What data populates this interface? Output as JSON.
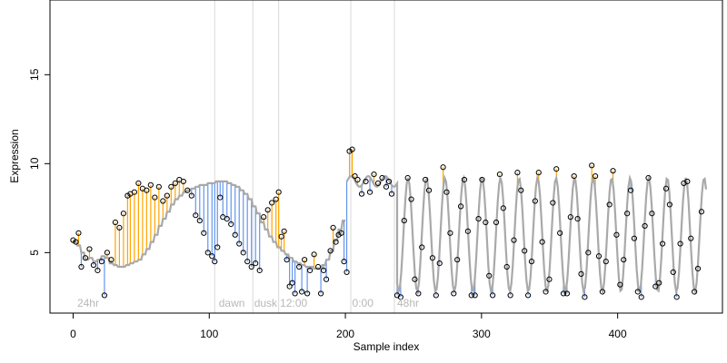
{
  "chart_data": {
    "type": "scatter",
    "title": "",
    "xlabel": "Sample index",
    "ylabel": "Expression",
    "xlim": [
      -17,
      477
    ],
    "ylim": [
      1.6,
      19.2
    ],
    "x_ticks": [
      0,
      100,
      200,
      300,
      400
    ],
    "y_ticks": [
      5,
      10,
      15
    ],
    "grid": false,
    "legend": "none",
    "colors": {
      "fit_line": "#a9a9a9",
      "positive_residual": "#ffa500",
      "negative_residual": "#6495ed",
      "points_edge": "#000000",
      "vlines": "#d9d9d9",
      "annotation_text": "#b8b8b8"
    },
    "vlines": [
      104,
      132,
      151,
      204,
      236
    ],
    "annotations": [
      {
        "label": "24hr",
        "x": 3
      },
      {
        "label": "dawn",
        "x": 107
      },
      {
        "label": "dusk",
        "x": 133
      },
      {
        "label": "12:00",
        "x": 152
      },
      {
        "label": "0:00",
        "x": 205
      },
      {
        "label": "48hr",
        "x": 238
      }
    ],
    "series": [
      {
        "values": [
          5.6,
          5.4,
          5.0,
          4.6,
          4.7,
          4.5,
          4.6,
          4.8,
          4.7,
          4.4,
          4.3,
          4.2,
          4.2,
          4.3,
          4.4,
          4.5,
          4.6,
          4.9,
          5.2,
          5.6,
          6.0,
          6.5,
          6.9,
          7.3,
          7.7,
          8.0,
          8.2,
          8.4,
          8.5,
          8.6,
          8.7,
          8.8,
          8.8,
          8.9,
          8.9,
          9.0,
          9.0,
          9.0,
          8.9,
          8.8,
          8.7,
          8.5,
          8.3,
          8.0,
          7.6,
          7.2,
          6.7,
          6.3,
          5.9,
          5.6,
          5.3,
          5.1,
          4.9,
          4.7,
          4.5,
          4.4,
          4.3,
          4.2,
          4.2,
          4.1,
          4.1,
          4.3,
          4.6,
          5.1,
          5.7,
          6.3,
          6.8,
          7.2,
          7.5,
          7.7,
          7.9,
          8.0,
          8.1,
          8.2,
          8.3,
          8.3,
          8.3,
          8.4,
          8.4,
          8.5
        ],
        "points": [
          [
            0,
            5.7
          ],
          [
            2,
            5.6
          ],
          [
            4,
            6.1
          ],
          [
            6,
            4.2
          ],
          [
            9,
            4.7
          ],
          [
            12,
            5.2
          ],
          [
            15,
            4.3
          ],
          [
            18,
            4.0
          ],
          [
            21,
            4.5
          ],
          [
            23,
            2.6
          ],
          [
            25,
            5.0
          ],
          [
            28,
            4.6
          ],
          [
            31,
            6.7
          ],
          [
            34,
            6.4
          ],
          [
            37,
            7.2
          ],
          [
            40,
            8.2
          ],
          [
            42,
            8.3
          ],
          [
            45,
            8.4
          ],
          [
            48,
            8.9
          ],
          [
            51,
            8.6
          ],
          [
            54,
            8.5
          ],
          [
            57,
            8.8
          ],
          [
            60,
            8.1
          ],
          [
            63,
            8.7
          ],
          [
            66,
            7.9
          ],
          [
            69,
            8.2
          ],
          [
            72,
            8.7
          ],
          [
            75,
            8.9
          ],
          [
            78,
            9.1
          ],
          [
            81,
            9.0
          ],
          [
            84,
            8.5
          ],
          [
            87,
            8.2
          ],
          [
            90,
            7.1
          ],
          [
            93,
            6.8
          ],
          [
            96,
            6.1
          ],
          [
            99,
            5.0
          ],
          [
            102,
            4.8
          ],
          [
            104,
            4.5
          ],
          [
            106,
            5.3
          ],
          [
            108,
            8.1
          ],
          [
            110,
            7.0
          ],
          [
            113,
            6.9
          ],
          [
            116,
            6.6
          ],
          [
            119,
            6.0
          ],
          [
            122,
            5.5
          ],
          [
            125,
            5.0
          ],
          [
            128,
            4.5
          ],
          [
            131,
            4.2
          ],
          [
            134,
            4.4
          ],
          [
            137,
            4.0
          ],
          [
            140,
            7.0
          ],
          [
            143,
            7.4
          ],
          [
            146,
            7.8
          ],
          [
            149,
            8.0
          ],
          [
            151,
            8.4
          ],
          [
            153,
            5.9
          ],
          [
            155,
            6.2
          ],
          [
            157,
            4.6
          ],
          [
            159,
            3.1
          ],
          [
            161,
            3.3
          ],
          [
            163,
            2.7
          ],
          [
            166,
            4.2
          ],
          [
            168,
            2.8
          ],
          [
            170,
            4.6
          ],
          [
            172,
            2.7
          ],
          [
            174,
            4.0
          ],
          [
            177,
            4.9
          ],
          [
            180,
            4.2
          ],
          [
            182,
            2.7
          ],
          [
            184,
            4.0
          ],
          [
            186,
            3.5
          ],
          [
            189,
            5.1
          ],
          [
            191,
            6.4
          ],
          [
            193,
            5.6
          ],
          [
            195,
            6.0
          ],
          [
            197,
            6.1
          ],
          [
            199,
            4.5
          ],
          [
            201,
            3.9
          ],
          [
            203,
            10.7
          ],
          [
            205,
            10.8
          ],
          [
            207,
            9.3
          ],
          [
            209,
            9.1
          ],
          [
            212,
            8.3
          ],
          [
            215,
            9.0
          ],
          [
            218,
            8.4
          ],
          [
            221,
            9.4
          ],
          [
            224,
            8.9
          ],
          [
            227,
            9.2
          ],
          [
            230,
            8.7
          ],
          [
            232,
            9.0
          ],
          [
            234,
            8.3
          ]
        ]
      }
    ]
  }
}
